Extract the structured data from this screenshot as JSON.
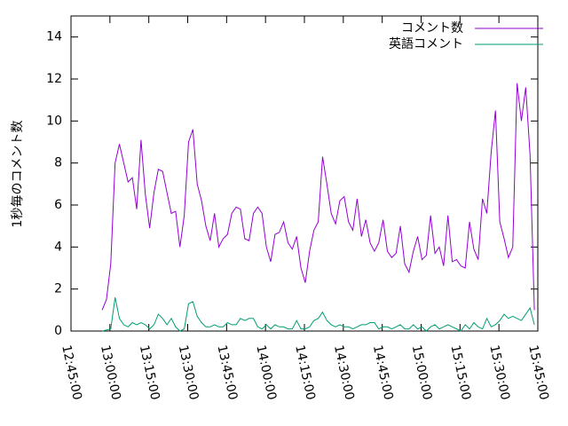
{
  "chart_data": {
    "type": "line",
    "ylabel": "1秒毎のコメント数",
    "xlim": [
      "12:45:00",
      "15:45:00"
    ],
    "xticks": [
      "12:45:00",
      "13:00:00",
      "13:15:00",
      "13:30:00",
      "13:45:00",
      "14:00:00",
      "14:15:00",
      "14:30:00",
      "14:45:00",
      "15:00:00",
      "15:15:00",
      "15:30:00",
      "15:45:00"
    ],
    "ylim": [
      0,
      15
    ],
    "yticks": [
      0,
      2,
      4,
      6,
      8,
      10,
      12,
      14
    ],
    "x": [
      "12:57:00",
      "12:58:40",
      "13:00:20",
      "13:02:00",
      "13:03:40",
      "13:05:20",
      "13:07:00",
      "13:08:40",
      "13:10:20",
      "13:12:00",
      "13:13:40",
      "13:15:20",
      "13:17:00",
      "13:18:40",
      "13:20:20",
      "13:22:00",
      "13:23:40",
      "13:25:20",
      "13:27:00",
      "13:28:40",
      "13:30:20",
      "13:32:00",
      "13:33:40",
      "13:35:20",
      "13:37:00",
      "13:38:40",
      "13:40:20",
      "13:42:00",
      "13:43:40",
      "13:45:20",
      "13:47:00",
      "13:48:40",
      "13:50:20",
      "13:52:00",
      "13:53:40",
      "13:55:20",
      "13:57:00",
      "13:58:40",
      "14:00:20",
      "14:02:00",
      "14:03:40",
      "14:05:20",
      "14:07:00",
      "14:08:40",
      "14:10:20",
      "14:12:00",
      "14:13:40",
      "14:15:20",
      "14:17:00",
      "14:18:40",
      "14:20:20",
      "14:22:00",
      "14:23:40",
      "14:25:20",
      "14:27:00",
      "14:28:40",
      "14:30:20",
      "14:32:00",
      "14:33:40",
      "14:35:20",
      "14:37:00",
      "14:38:40",
      "14:40:20",
      "14:42:00",
      "14:43:40",
      "14:45:20",
      "14:47:00",
      "14:48:40",
      "14:50:20",
      "14:52:00",
      "14:53:40",
      "14:55:20",
      "14:57:00",
      "14:58:40",
      "15:00:20",
      "15:02:00",
      "15:03:40",
      "15:05:20",
      "15:07:00",
      "15:08:40",
      "15:10:20",
      "15:12:00",
      "15:13:40",
      "15:15:20",
      "15:17:00",
      "15:18:40",
      "15:20:20",
      "15:22:00",
      "15:23:40",
      "15:25:20",
      "15:27:00",
      "15:28:40",
      "15:30:20",
      "15:32:00",
      "15:33:40",
      "15:35:20",
      "15:37:00",
      "15:38:40",
      "15:40:20",
      "15:42:00",
      "15:43:40"
    ],
    "series": [
      {
        "name": "コメント数",
        "color": "#9400d3",
        "values": [
          1.0,
          1.5,
          3.2,
          8.0,
          8.9,
          8.0,
          7.1,
          7.3,
          5.8,
          9.1,
          6.5,
          4.9,
          6.6,
          7.7,
          7.6,
          6.6,
          5.6,
          5.7,
          4.0,
          5.5,
          9.0,
          9.6,
          7.0,
          6.2,
          5.0,
          4.3,
          5.6,
          4.0,
          4.4,
          4.6,
          5.6,
          5.9,
          5.8,
          4.4,
          4.3,
          5.6,
          5.9,
          5.6,
          4.0,
          3.3,
          4.6,
          4.7,
          5.2,
          4.2,
          3.9,
          4.5,
          3.0,
          2.3,
          3.8,
          4.8,
          5.2,
          8.3,
          7.0,
          5.6,
          5.1,
          6.2,
          6.4,
          5.2,
          4.8,
          6.3,
          4.5,
          5.3,
          4.2,
          3.8,
          4.2,
          5.3,
          3.8,
          3.5,
          3.7,
          5.0,
          3.2,
          2.8,
          3.8,
          4.5,
          3.4,
          3.6,
          5.5,
          3.7,
          4.0,
          3.1,
          5.5,
          3.3,
          3.4,
          3.1,
          3.0,
          5.2,
          3.9,
          3.4,
          6.3,
          5.6,
          8.5,
          10.5,
          5.2,
          4.4,
          3.5,
          4.0,
          11.8,
          10.0,
          11.6,
          8.4,
          1.0
        ]
      },
      {
        "name": "英語コメント",
        "color": "#009e73",
        "values": [
          0,
          0.05,
          0.1,
          1.6,
          0.6,
          0.3,
          0.2,
          0.4,
          0.3,
          0.4,
          0.3,
          0.1,
          0.3,
          0.8,
          0.6,
          0.3,
          0.6,
          0.2,
          0.0,
          0.1,
          1.3,
          1.4,
          0.7,
          0.4,
          0.2,
          0.2,
          0.3,
          0.2,
          0.2,
          0.4,
          0.3,
          0.3,
          0.6,
          0.5,
          0.6,
          0.6,
          0.2,
          0.1,
          0.3,
          0.1,
          0.3,
          0.2,
          0.2,
          0.1,
          0.1,
          0.5,
          0.1,
          0.1,
          0.2,
          0.5,
          0.6,
          0.9,
          0.5,
          0.3,
          0.2,
          0.3,
          0.2,
          0.2,
          0.1,
          0.2,
          0.3,
          0.3,
          0.4,
          0.4,
          0.1,
          0.2,
          0.2,
          0.1,
          0.2,
          0.3,
          0.1,
          0.1,
          0.3,
          0.1,
          0.2,
          0.0,
          0.2,
          0.3,
          0.1,
          0.2,
          0.3,
          0.2,
          0.1,
          0.0,
          0.3,
          0.1,
          0.4,
          0.2,
          0.1,
          0.6,
          0.2,
          0.3,
          0.5,
          0.8,
          0.6,
          0.7,
          0.6,
          0.5,
          0.8,
          1.1,
          0.3
        ]
      }
    ],
    "legend": "top-right"
  }
}
